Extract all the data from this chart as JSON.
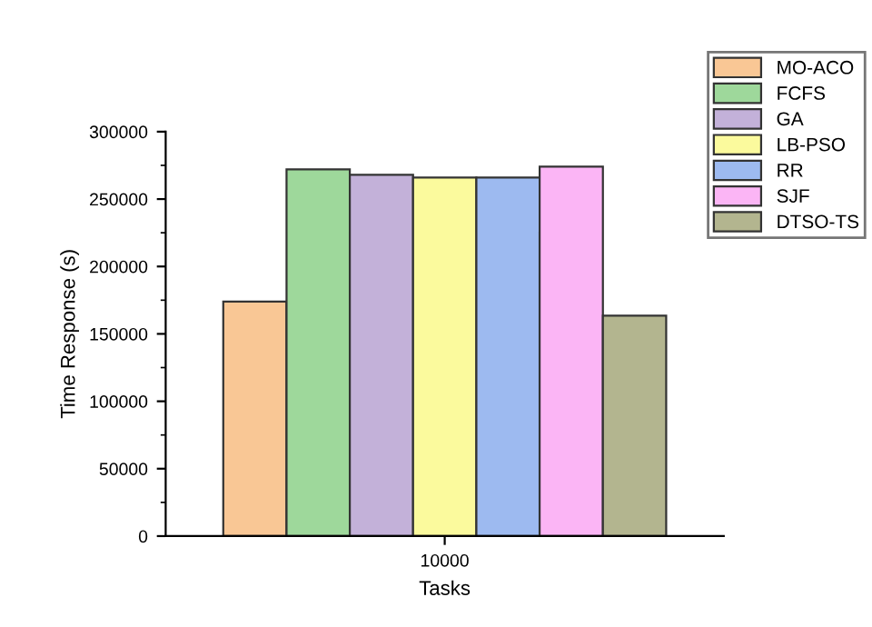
{
  "chart_data": {
    "type": "bar",
    "xlabel": "Tasks",
    "ylabel": "Time Response (s)",
    "categories": [
      "10000"
    ],
    "series": [
      {
        "name": "MO-ACO",
        "color": "#f9c795",
        "values": [
          174000
        ]
      },
      {
        "name": "FCFS",
        "color": "#9ed89b",
        "values": [
          272000
        ]
      },
      {
        "name": "GA",
        "color": "#c3b1d9",
        "values": [
          268000
        ]
      },
      {
        "name": "LB-PSO",
        "color": "#fbfa9d",
        "values": [
          266000
        ]
      },
      {
        "name": "RR",
        "color": "#9dbaf0",
        "values": [
          266000
        ]
      },
      {
        "name": "SJF",
        "color": "#fbb5f5",
        "values": [
          274000
        ]
      },
      {
        "name": "DTSO-TS",
        "color": "#b3b58f",
        "values": [
          163500
        ]
      }
    ],
    "ylim": [
      0,
      300000
    ],
    "yticks": [
      0,
      {
        "value": 25000,
        "label": null
      },
      50000,
      {
        "value": 75000,
        "label": null
      },
      100000,
      {
        "value": 125000,
        "label": null
      },
      150000,
      {
        "value": 175000,
        "label": null
      },
      200000,
      {
        "value": 225000,
        "label": null
      },
      250000,
      {
        "value": 275000,
        "label": null
      },
      300000
    ],
    "grid": false,
    "legend": "top right"
  }
}
